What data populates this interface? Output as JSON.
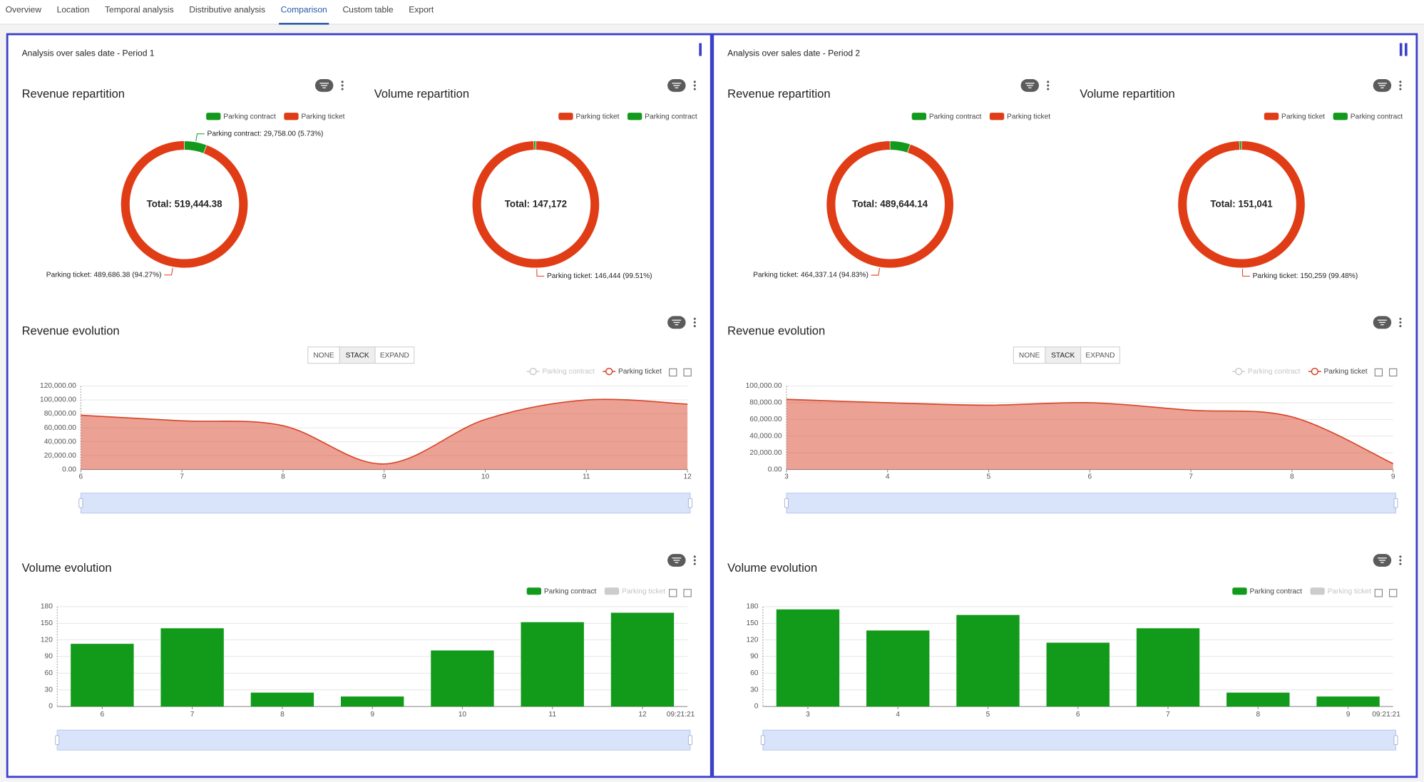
{
  "tabs": [
    "Overview",
    "Location",
    "Temporal analysis",
    "Distributive analysis",
    "Comparison",
    "Custom table",
    "Export"
  ],
  "active_tab": 4,
  "panels": [
    {
      "title": "Analysis over sales date - Period 1",
      "marker": "I",
      "revenue_repartition": {
        "type": "pie",
        "title": "Revenue repartition",
        "total_label": "Total: 519,444.38",
        "categories": [
          "Parking contract",
          "Parking ticket"
        ],
        "values": [
          29758,
          489686.38
        ],
        "value_labels": [
          "Parking contract: 29,758.00 (5.73%)",
          "Parking ticket: 489,686.38 (94.27%)"
        ],
        "colors": [
          "#139a1c",
          "#e03c16"
        ]
      },
      "volume_repartition": {
        "type": "pie",
        "title": "Volume repartition",
        "total_label": "Total: 147,172",
        "categories": [
          "Parking ticket",
          "Parking contract"
        ],
        "values": [
          146444,
          728
        ],
        "value_labels": [
          "Parking ticket: 146,444 (99.51%)",
          null
        ],
        "colors": [
          "#e03c16",
          "#139a1c"
        ]
      },
      "revenue_evolution": {
        "type": "area",
        "title": "Revenue evolution",
        "stack_modes": [
          "NONE",
          "STACK",
          "EXPAND"
        ],
        "stack_mode": 1,
        "categories": [
          "6",
          "7",
          "8",
          "9",
          "10",
          "11",
          "12"
        ],
        "series": [
          {
            "name": "Parking contract",
            "color": "#cccccc",
            "visible": false
          },
          {
            "name": "Parking ticket",
            "color": "#d8452a",
            "visible": true,
            "values": [
              78000,
              70000,
              63000,
              8000,
              72000,
              100000,
              94000
            ]
          }
        ],
        "ylim": [
          0,
          120000
        ],
        "yticks": [
          {
            "value": 0,
            "label": "0.00"
          },
          {
            "value": 20000,
            "label": "20,000.00"
          },
          {
            "value": 40000,
            "label": "40,000.00"
          },
          {
            "value": 60000,
            "label": "60,000.00"
          },
          {
            "value": 80000,
            "label": "80,000.00"
          },
          {
            "value": 100000,
            "label": "100,000.00"
          },
          {
            "value": 120000,
            "label": "120,000.00"
          }
        ]
      },
      "volume_evolution": {
        "type": "bar",
        "title": "Volume evolution",
        "categories": [
          "6",
          "7",
          "8",
          "9",
          "10",
          "11",
          "12"
        ],
        "series": [
          {
            "name": "Parking contract",
            "color": "#129a1b",
            "visible": true,
            "values": [
              113,
              141,
              25,
              18,
              101,
              152,
              169
            ]
          },
          {
            "name": "Parking ticket",
            "color": "#cccccc",
            "visible": false
          }
        ],
        "ylim": [
          0,
          180
        ],
        "yticks": [
          0,
          30,
          60,
          90,
          120,
          150,
          180
        ],
        "x_end_label": "09:21:21"
      }
    },
    {
      "title": "Analysis over sales date - Period 2",
      "marker": "II",
      "revenue_repartition": {
        "type": "pie",
        "title": "Revenue repartition",
        "total_label": "Total: 489,644.14",
        "categories": [
          "Parking contract",
          "Parking ticket"
        ],
        "values": [
          25307,
          464337.14
        ],
        "value_labels": [
          null,
          "Parking ticket: 464,337.14 (94.83%)"
        ],
        "colors": [
          "#139a1c",
          "#e03c16"
        ]
      },
      "volume_repartition": {
        "type": "pie",
        "title": "Volume repartition",
        "total_label": "Total: 151,041",
        "categories": [
          "Parking ticket",
          "Parking contract"
        ],
        "values": [
          150259,
          782
        ],
        "value_labels": [
          "Parking ticket: 150,259 (99.48%)",
          null
        ],
        "colors": [
          "#e03c16",
          "#139a1c"
        ]
      },
      "revenue_evolution": {
        "type": "area",
        "title": "Revenue evolution",
        "stack_modes": [
          "NONE",
          "STACK",
          "EXPAND"
        ],
        "stack_mode": 1,
        "categories": [
          "3",
          "4",
          "5",
          "6",
          "7",
          "8",
          "9"
        ],
        "series": [
          {
            "name": "Parking contract",
            "color": "#cccccc",
            "visible": false
          },
          {
            "name": "Parking ticket",
            "color": "#d8452a",
            "visible": true,
            "values": [
              84000,
              80000,
              77000,
              80000,
              71000,
              63000,
              7000
            ]
          }
        ],
        "ylim": [
          0,
          100000
        ],
        "yticks": [
          {
            "value": 0,
            "label": "0.00"
          },
          {
            "value": 20000,
            "label": "20,000.00"
          },
          {
            "value": 40000,
            "label": "40,000.00"
          },
          {
            "value": 60000,
            "label": "60,000.00"
          },
          {
            "value": 80000,
            "label": "80,000.00"
          },
          {
            "value": 100000,
            "label": "100,000.00"
          }
        ]
      },
      "volume_evolution": {
        "type": "bar",
        "title": "Volume evolution",
        "categories": [
          "3",
          "4",
          "5",
          "6",
          "7",
          "8",
          "9"
        ],
        "series": [
          {
            "name": "Parking contract",
            "color": "#129a1b",
            "visible": true,
            "values": [
              175,
              137,
              165,
              115,
              141,
              25,
              18
            ]
          },
          {
            "name": "Parking ticket",
            "color": "#cccccc",
            "visible": false
          }
        ],
        "ylim": [
          0,
          180
        ],
        "yticks": [
          0,
          30,
          60,
          90,
          120,
          150,
          180
        ],
        "x_end_label": "09:21:21"
      }
    }
  ]
}
